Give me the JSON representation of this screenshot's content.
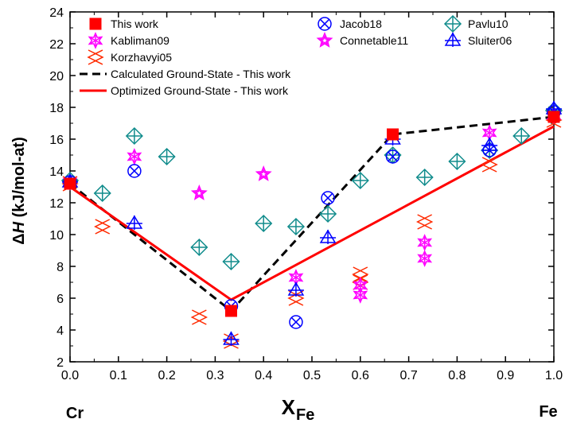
{
  "chart_data": {
    "type": "scatter",
    "xlabel": "X",
    "xlabel_sub": "Fe",
    "ylabel_delta": "Δ",
    "ylabel_h": "H",
    "ylabel_rest": " (kJ/mol-at)",
    "x_end_left": "Cr",
    "x_end_right": "Fe",
    "xlim": [
      0.0,
      1.0
    ],
    "ylim": [
      2,
      24
    ],
    "xticks": [
      "0.0",
      "0.1",
      "0.2",
      "0.3",
      "0.4",
      "0.5",
      "0.6",
      "0.7",
      "0.8",
      "0.9",
      "1.0"
    ],
    "yticks": [
      "2",
      "4",
      "6",
      "8",
      "10",
      "12",
      "14",
      "16",
      "18",
      "20",
      "22",
      "24"
    ],
    "legend_position": "top",
    "series": [
      {
        "name": "This work",
        "marker": "square",
        "color": "#ff0000",
        "points": [
          [
            0.0,
            13.2
          ],
          [
            0.333,
            5.2
          ],
          [
            0.667,
            16.3
          ],
          [
            1.0,
            17.4
          ]
        ]
      },
      {
        "name": "Kabliman09",
        "marker": "star6",
        "color": "#ff00ff",
        "points": [
          [
            0.0,
            13.3
          ],
          [
            0.133,
            14.9
          ],
          [
            0.467,
            7.3
          ],
          [
            0.6,
            6.2
          ],
          [
            0.6,
            6.8
          ],
          [
            0.733,
            8.5
          ],
          [
            0.733,
            9.5
          ],
          [
            0.867,
            16.4
          ],
          [
            1.0,
            17.5
          ]
        ]
      },
      {
        "name": "Korzhavyi05",
        "marker": "cross-x",
        "color": "#ff2a00",
        "points": [
          [
            0.0,
            13.2
          ],
          [
            0.067,
            10.5
          ],
          [
            0.267,
            4.8
          ],
          [
            0.333,
            3.3
          ],
          [
            0.467,
            6.0
          ],
          [
            0.6,
            7.0
          ],
          [
            0.6,
            7.5
          ],
          [
            0.733,
            10.8
          ],
          [
            0.867,
            14.4
          ],
          [
            1.0,
            17.2
          ]
        ]
      },
      {
        "name": "Jacob18",
        "marker": "circle-x",
        "color": "#0000ff",
        "points": [
          [
            0.0,
            13.3
          ],
          [
            0.133,
            14.0
          ],
          [
            0.333,
            5.5
          ],
          [
            0.467,
            4.5
          ],
          [
            0.533,
            12.3
          ],
          [
            0.667,
            14.9
          ],
          [
            0.867,
            15.3
          ],
          [
            1.0,
            17.7
          ]
        ]
      },
      {
        "name": "Connetable11",
        "marker": "star5",
        "color": "#ff00ff",
        "points": [
          [
            0.267,
            12.6
          ],
          [
            0.4,
            13.8
          ]
        ]
      },
      {
        "name": "Pavlu10",
        "marker": "diamond-plus",
        "color": "#108c8c",
        "points": [
          [
            0.0,
            13.4
          ],
          [
            0.067,
            12.6
          ],
          [
            0.133,
            16.2
          ],
          [
            0.2,
            14.9
          ],
          [
            0.267,
            9.2
          ],
          [
            0.333,
            8.3
          ],
          [
            0.4,
            10.7
          ],
          [
            0.467,
            10.5
          ],
          [
            0.533,
            11.3
          ],
          [
            0.6,
            13.4
          ],
          [
            0.667,
            15.0
          ],
          [
            0.733,
            13.6
          ],
          [
            0.8,
            14.6
          ],
          [
            0.867,
            15.3
          ],
          [
            0.933,
            16.2
          ],
          [
            1.0,
            17.8
          ]
        ]
      },
      {
        "name": "Sluiter06",
        "marker": "triangle-plus",
        "color": "#0000ff",
        "points": [
          [
            0.0,
            13.3
          ],
          [
            0.133,
            10.7
          ],
          [
            0.333,
            3.4
          ],
          [
            0.467,
            6.5
          ],
          [
            0.533,
            9.8
          ],
          [
            0.667,
            16.0
          ],
          [
            0.867,
            15.6
          ],
          [
            1.0,
            17.9
          ]
        ]
      }
    ],
    "lines": [
      {
        "name": "Calculated Ground-State - This work",
        "style": "dashed",
        "color": "#000000",
        "points": [
          [
            0.0,
            13.2
          ],
          [
            0.333,
            5.2
          ],
          [
            0.667,
            16.3
          ],
          [
            1.0,
            17.4
          ]
        ]
      },
      {
        "name": "Optimized Ground-State - This work",
        "style": "solid",
        "color": "#ff0000",
        "points": [
          [
            0.0,
            13.0
          ],
          [
            0.333,
            5.9
          ],
          [
            1.0,
            16.8
          ]
        ]
      }
    ]
  }
}
